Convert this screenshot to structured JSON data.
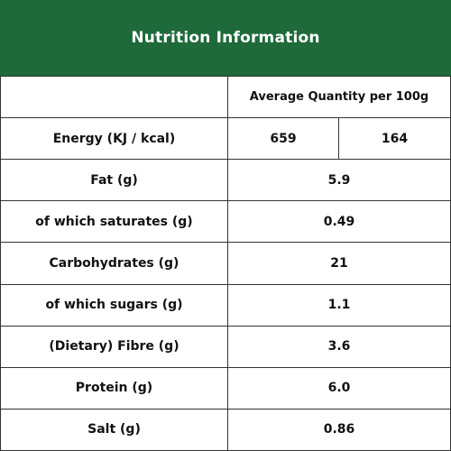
{
  "title": "Nutrition Information",
  "column_header": "Average Quantity per 100g",
  "energy": {
    "label": "Energy (KJ / kcal)",
    "kj": "659",
    "kcal": "164"
  },
  "rows": [
    {
      "label": "Fat (g)",
      "value": "5.9"
    },
    {
      "label": "of which saturates (g)",
      "value": "0.49"
    },
    {
      "label": "Carbohydrates (g)",
      "value": "21"
    },
    {
      "label": "of which sugars (g)",
      "value": "1.1"
    },
    {
      "label": "(Dietary) Fibre (g)",
      "value": "3.6"
    },
    {
      "label": "Protein (g)",
      "value": "6.0"
    },
    {
      "label": "Salt (g)",
      "value": "0.86"
    }
  ],
  "colors": {
    "header_bg": "#1f6a3a",
    "header_text": "#ffffff",
    "border": "#333333"
  }
}
